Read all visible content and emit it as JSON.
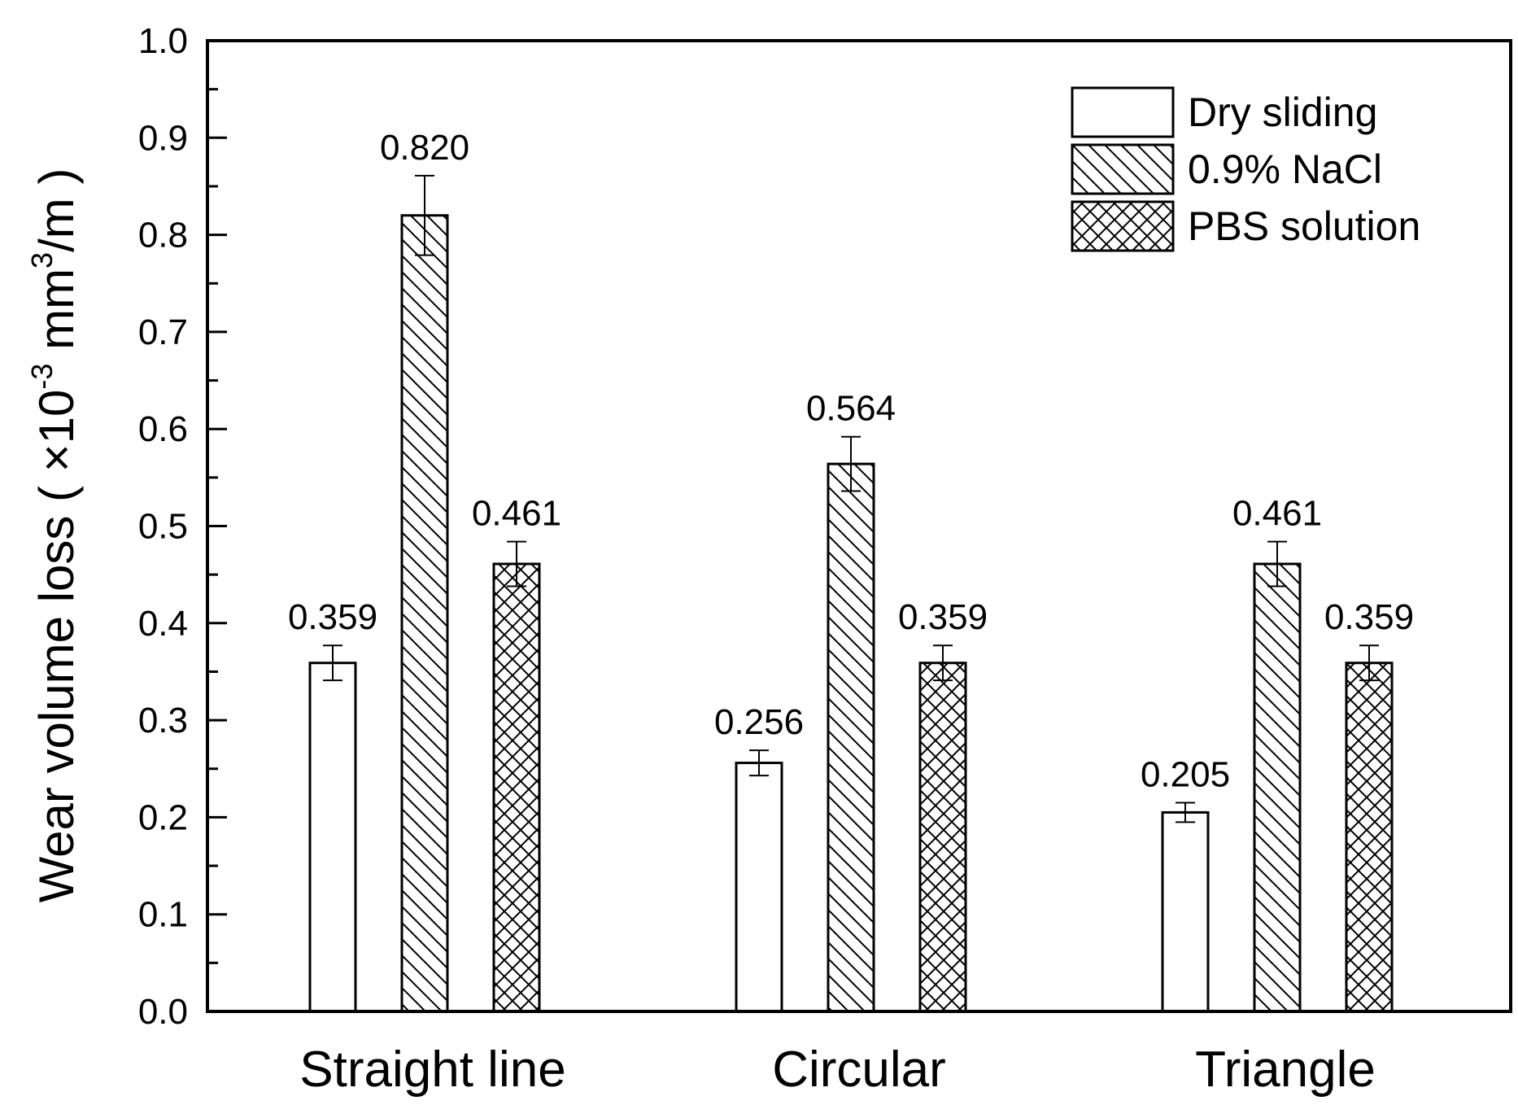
{
  "chart_data": {
    "type": "bar",
    "title": "",
    "xlabel": "",
    "ylabel": {
      "prefix": "Wear volume loss ( ×10",
      "exp1": "-3",
      "mid": " mm",
      "exp2": "3",
      "suffix": "/m )"
    },
    "ylim": [
      0.0,
      1.0
    ],
    "yticks": [
      "0.0",
      "0.1",
      "0.2",
      "0.3",
      "0.4",
      "0.5",
      "0.6",
      "0.7",
      "0.8",
      "0.9",
      "1.0"
    ],
    "grid": false,
    "legend_position": "top-right",
    "categories": [
      "Straight line",
      "Circular",
      "Triangle"
    ],
    "series": [
      {
        "name": "Dry sliding",
        "pattern": "none",
        "values": [
          0.359,
          0.256,
          0.205
        ],
        "errors": [
          0.018,
          0.013,
          0.01
        ],
        "labels": [
          "0.359",
          "0.256",
          "0.205"
        ]
      },
      {
        "name": "0.9% NaCl",
        "pattern": "diagonal",
        "values": [
          0.82,
          0.564,
          0.461
        ],
        "errors": [
          0.041,
          0.028,
          0.023
        ],
        "labels": [
          "0.820",
          "0.564",
          "0.461"
        ]
      },
      {
        "name": "PBS solution",
        "pattern": "crosshatch",
        "values": [
          0.461,
          0.359,
          0.359
        ],
        "errors": [
          0.023,
          0.018,
          0.018
        ],
        "labels": [
          "0.461",
          "0.359",
          "0.359"
        ]
      }
    ],
    "colors": {
      "axis": "#000000",
      "bar_fill": "#ffffff",
      "hatch": "#000000"
    }
  }
}
